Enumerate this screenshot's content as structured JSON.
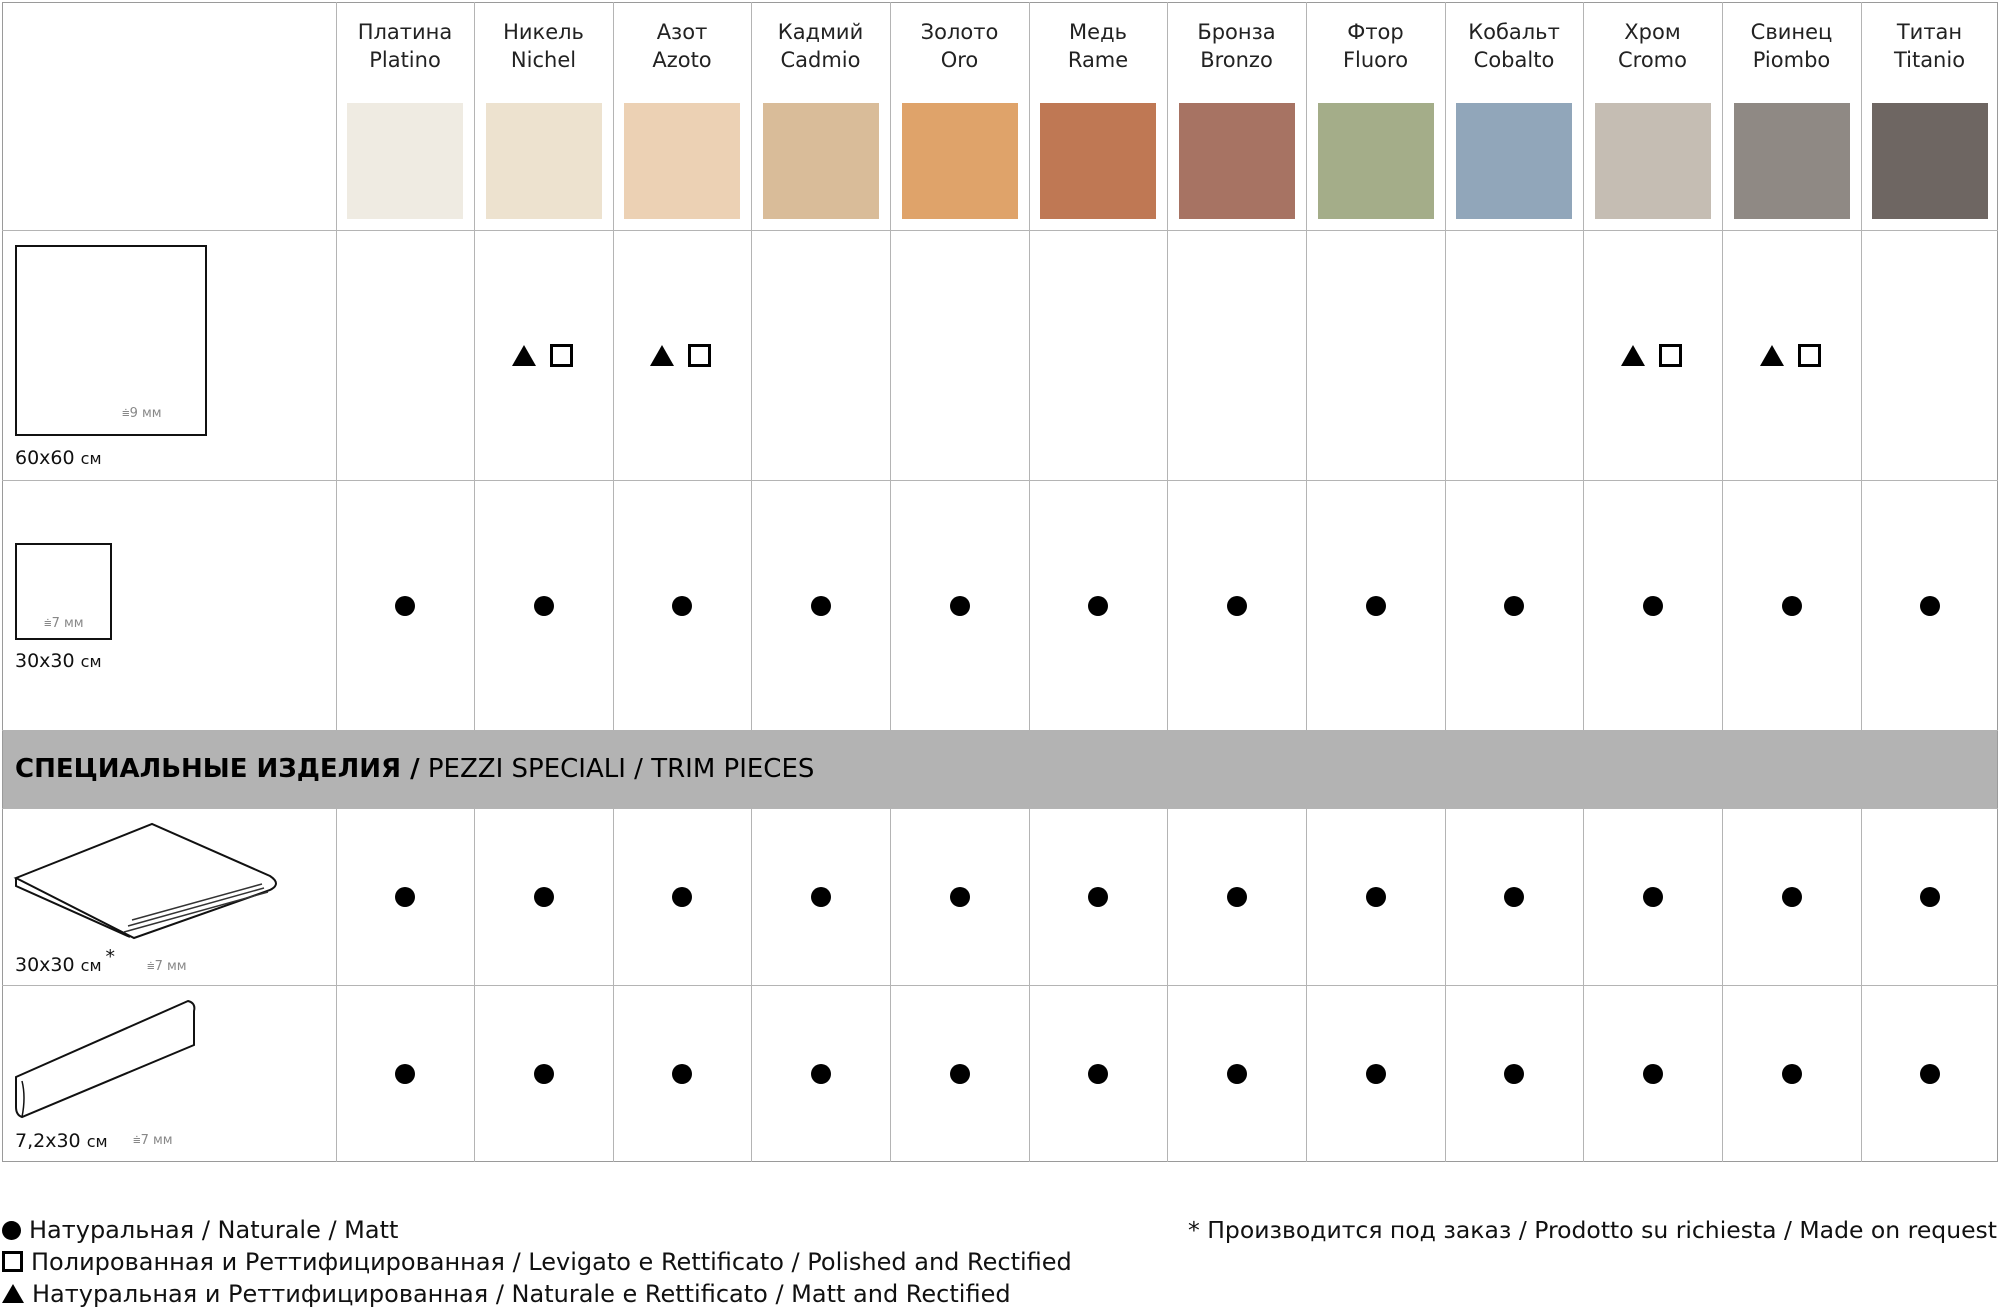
{
  "colors": [
    {
      "ru": "Платина",
      "it": "Platino",
      "swatch": "#efebe2"
    },
    {
      "ru": "Никель",
      "it": "Nichel",
      "swatch": "#ede2cf"
    },
    {
      "ru": "Азот",
      "it": "Azoto",
      "swatch": "#ecd1b4"
    },
    {
      "ru": "Кадмий",
      "it": "Cadmio",
      "swatch": "#d9bc99"
    },
    {
      "ru": "Золото",
      "it": "Oro",
      "swatch": "#dfa36a"
    },
    {
      "ru": "Медь",
      "it": "Rame",
      "swatch": "#bf7854"
    },
    {
      "ru": "Бронза",
      "it": "Bronzo",
      "swatch": "#a77363"
    },
    {
      "ru": "Фтор",
      "it": "Fluoro",
      "swatch": "#a4ad89"
    },
    {
      "ru": "Кобальт",
      "it": "Cobalto",
      "swatch": "#91a6ba"
    },
    {
      "ru": "Хром",
      "it": "Cromo",
      "swatch": "#c5bdb3"
    },
    {
      "ru": "Свинец",
      "it": "Piombo",
      "swatch": "#8f8984"
    },
    {
      "ru": "Титан",
      "it": "Titanio",
      "swatch": "#6e6662"
    }
  ],
  "rows": [
    {
      "id": "tile-60x60",
      "label": "60x60",
      "unit": "см",
      "thickness": "9 мм",
      "availability": [
        [],
        [
          "triangle",
          "square"
        ],
        [
          "triangle",
          "square"
        ],
        [],
        [],
        [],
        [],
        [],
        [],
        [
          "triangle",
          "square"
        ],
        [
          "triangle",
          "square"
        ],
        []
      ]
    },
    {
      "id": "tile-30x30",
      "label": "30x30",
      "unit": "см",
      "thickness": "7 мм",
      "availability": [
        [
          "dot"
        ],
        [
          "dot"
        ],
        [
          "dot"
        ],
        [
          "dot"
        ],
        [
          "dot"
        ],
        [
          "dot"
        ],
        [
          "dot"
        ],
        [
          "dot"
        ],
        [
          "dot"
        ],
        [
          "dot"
        ],
        [
          "dot"
        ],
        [
          "dot"
        ]
      ]
    },
    {
      "id": "step-30x30",
      "label": "30x30",
      "unit": "см",
      "asterisk": "*",
      "thickness": "7 мм",
      "availability": [
        [
          "dot"
        ],
        [
          "dot"
        ],
        [
          "dot"
        ],
        [
          "dot"
        ],
        [
          "dot"
        ],
        [
          "dot"
        ],
        [
          "dot"
        ],
        [
          "dot"
        ],
        [
          "dot"
        ],
        [
          "dot"
        ],
        [
          "dot"
        ],
        [
          "dot"
        ]
      ]
    },
    {
      "id": "skirting-7x30",
      "label": "7,2x30",
      "unit": "см",
      "thickness": "7 мм",
      "availability": [
        [
          "dot"
        ],
        [
          "dot"
        ],
        [
          "dot"
        ],
        [
          "dot"
        ],
        [
          "dot"
        ],
        [
          "dot"
        ],
        [
          "dot"
        ],
        [
          "dot"
        ],
        [
          "dot"
        ],
        [
          "dot"
        ],
        [
          "dot"
        ],
        [
          "dot"
        ]
      ]
    }
  ],
  "section": {
    "title_bold": "СПЕЦИАЛЬНЫЕ ИЗДЕЛИЯ /",
    "title_rest": " PEZZI SPECIALI / TRIM PIECES"
  },
  "legend": {
    "dot": "Натуральная / Naturale / Matt",
    "square": "Полированная и Реттифицированная / Levigato e Rettificato / Polished and Rectified",
    "triangle": "Натуральная и Реттифицированная / Naturale e Rettificato / Matt and Rectified",
    "note": "* Производится под заказ / Prodotto su richiesta / Made on request"
  }
}
